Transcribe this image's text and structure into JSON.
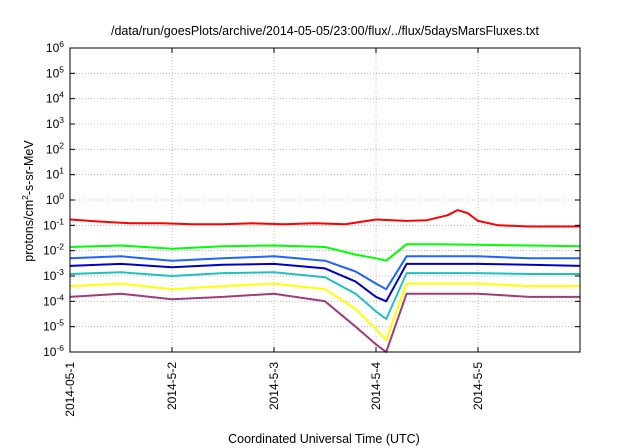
{
  "chart_data": {
    "type": "line",
    "title": "/data/run/goesPlots/archive/2014-05-05/23:00/flux/../flux/5daysMarsFluxes.txt",
    "xlabel": "Coordinated Universal Time (UTC)",
    "ylabel": "protons/cm2-s-sr-MeV",
    "ylabel_parts": {
      "pre": "protons/cm",
      "sup": "2",
      "post": "-s-sr-MeV"
    },
    "y_scale": "log",
    "ylim": [
      1e-06,
      1000000.0
    ],
    "y_ticks": [
      {
        "base": "10",
        "exp": "-6"
      },
      {
        "base": "10",
        "exp": "-5"
      },
      {
        "base": "10",
        "exp": "-4"
      },
      {
        "base": "10",
        "exp": "-3"
      },
      {
        "base": "10",
        "exp": "-2"
      },
      {
        "base": "10",
        "exp": "-1"
      },
      {
        "base": "10",
        "exp": "0"
      },
      {
        "base": "10",
        "exp": "1"
      },
      {
        "base": "10",
        "exp": "2"
      },
      {
        "base": "10",
        "exp": "3"
      },
      {
        "base": "10",
        "exp": "4"
      },
      {
        "base": "10",
        "exp": "5"
      },
      {
        "base": "10",
        "exp": "6"
      }
    ],
    "x_range": [
      "2014-05-01",
      "2014-05-06"
    ],
    "x_ticks": [
      "2014-05-1",
      "2014-5-2",
      "2014-5-3",
      "2014-5-4",
      "2014-5-5"
    ],
    "grid": true,
    "series": [
      {
        "color": "#ff0000",
        "x": [
          0.0,
          0.3,
          0.6,
          0.9,
          1.2,
          1.5,
          1.8,
          2.1,
          2.4,
          2.7,
          3.0,
          3.3,
          3.5,
          3.7,
          3.8,
          3.9,
          4.0,
          4.2,
          4.5,
          4.8,
          5.0
        ],
        "y": [
          0.17,
          0.14,
          0.12,
          0.12,
          0.11,
          0.11,
          0.12,
          0.11,
          0.12,
          0.11,
          0.17,
          0.15,
          0.16,
          0.25,
          0.4,
          0.3,
          0.15,
          0.1,
          0.09,
          0.09,
          0.09
        ]
      },
      {
        "color": "#00ff00",
        "x": [
          0.0,
          0.5,
          1.0,
          1.5,
          2.0,
          2.5,
          2.8,
          3.0,
          3.1,
          3.3,
          3.6,
          4.0,
          4.5,
          5.0
        ],
        "y": [
          0.014,
          0.016,
          0.012,
          0.015,
          0.016,
          0.014,
          0.007,
          0.005,
          0.004,
          0.018,
          0.018,
          0.017,
          0.016,
          0.015
        ]
      },
      {
        "color": "#1e64ff",
        "x": [
          0.0,
          0.5,
          1.0,
          1.5,
          2.0,
          2.5,
          2.8,
          3.0,
          3.1,
          3.3,
          3.6,
          4.0,
          4.5,
          5.0
        ],
        "y": [
          0.005,
          0.006,
          0.004,
          0.005,
          0.006,
          0.004,
          0.0015,
          0.0005,
          0.0003,
          0.006,
          0.006,
          0.006,
          0.005,
          0.005
        ]
      },
      {
        "color": "#0000cc",
        "x": [
          0.0,
          0.5,
          1.0,
          1.5,
          2.0,
          2.5,
          2.8,
          3.0,
          3.1,
          3.3,
          3.6,
          4.0,
          4.5,
          5.0
        ],
        "y": [
          0.0025,
          0.003,
          0.0022,
          0.0028,
          0.003,
          0.002,
          0.0006,
          0.00015,
          0.0001,
          0.003,
          0.003,
          0.003,
          0.0028,
          0.0025
        ]
      },
      {
        "color": "#20c0c0",
        "x": [
          0.0,
          0.5,
          1.0,
          1.5,
          2.0,
          2.5,
          2.8,
          3.0,
          3.1,
          3.3,
          3.6,
          4.0,
          4.5,
          5.0
        ],
        "y": [
          0.0012,
          0.0014,
          0.001,
          0.0013,
          0.0014,
          0.0009,
          0.0002,
          4e-05,
          2e-05,
          0.0013,
          0.0013,
          0.0013,
          0.0012,
          0.0012
        ]
      },
      {
        "color": "#ffff00",
        "x": [
          0.0,
          0.5,
          1.0,
          1.5,
          2.0,
          2.5,
          2.8,
          3.0,
          3.1,
          3.3,
          3.6,
          4.0,
          4.5,
          5.0
        ],
        "y": [
          0.0004,
          0.0005,
          0.0003,
          0.0004,
          0.0005,
          0.0003,
          5e-05,
          8e-06,
          3e-06,
          0.0005,
          0.0005,
          0.0005,
          0.0004,
          0.0004
        ]
      },
      {
        "color": "#a03c78",
        "x": [
          0.0,
          0.5,
          1.0,
          1.5,
          2.0,
          2.5,
          2.8,
          3.0,
          3.1,
          3.3,
          3.6,
          4.0,
          4.5,
          5.0
        ],
        "y": [
          0.00015,
          0.0002,
          0.00012,
          0.00015,
          0.0002,
          0.0001,
          1e-05,
          2e-06,
          1e-06,
          0.0002,
          0.0002,
          0.0002,
          0.00015,
          0.00015
        ]
      }
    ]
  }
}
